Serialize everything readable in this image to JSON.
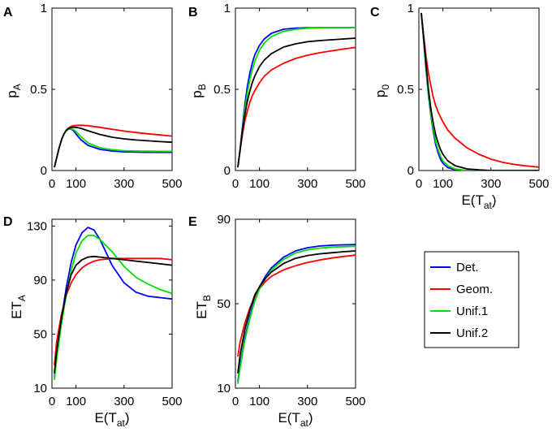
{
  "legend": [
    {
      "label": "Det.",
      "color": "#0000ff"
    },
    {
      "label": "Geom.",
      "color": "#ff0000"
    },
    {
      "label": "Unif.1",
      "color": "#00e000"
    },
    {
      "label": "Unif.2",
      "color": "#000000"
    }
  ],
  "chart_data": [
    {
      "panel": "A",
      "type": "line",
      "ylabel": "p",
      "ylabel_sub": "A",
      "xlabel": "",
      "xlabel_sub": "",
      "xlim": [
        0,
        500
      ],
      "ylim": [
        0,
        1
      ],
      "xticks": [
        0,
        100,
        300,
        500
      ],
      "yticks": [
        0,
        0.5,
        1
      ],
      "xticklabels": [
        "0",
        "100",
        "300",
        "500"
      ],
      "yticklabels": [
        "0",
        "0.5",
        "1"
      ],
      "x": [
        10,
        20,
        30,
        40,
        50,
        60,
        70,
        80,
        90,
        100,
        120,
        150,
        200,
        250,
        300,
        350,
        400,
        450,
        500
      ],
      "series": [
        {
          "name": "Det.",
          "color": "#0000ff",
          "values": [
            0.02,
            0.08,
            0.14,
            0.19,
            0.225,
            0.245,
            0.255,
            0.255,
            0.245,
            0.225,
            0.19,
            0.155,
            0.13,
            0.12,
            0.115,
            0.113,
            0.112,
            0.112,
            0.112
          ]
        },
        {
          "name": "Geom.",
          "color": "#ff0000",
          "values": [
            0.02,
            0.08,
            0.14,
            0.19,
            0.225,
            0.25,
            0.263,
            0.272,
            0.276,
            0.278,
            0.279,
            0.276,
            0.266,
            0.254,
            0.243,
            0.234,
            0.226,
            0.219,
            0.212
          ]
        },
        {
          "name": "Unif.1",
          "color": "#00e000",
          "values": [
            0.02,
            0.08,
            0.14,
            0.19,
            0.225,
            0.245,
            0.255,
            0.257,
            0.252,
            0.24,
            0.21,
            0.17,
            0.14,
            0.128,
            0.122,
            0.12,
            0.119,
            0.118,
            0.118
          ]
        },
        {
          "name": "Unif.2",
          "color": "#000000",
          "values": [
            0.02,
            0.08,
            0.14,
            0.19,
            0.225,
            0.248,
            0.26,
            0.265,
            0.267,
            0.266,
            0.26,
            0.245,
            0.222,
            0.205,
            0.195,
            0.188,
            0.183,
            0.178,
            0.174
          ]
        }
      ]
    },
    {
      "panel": "B",
      "type": "line",
      "ylabel": "p",
      "ylabel_sub": "B",
      "xlabel": "",
      "xlabel_sub": "",
      "xlim": [
        0,
        500
      ],
      "ylim": [
        0,
        1
      ],
      "xticks": [
        0,
        100,
        300,
        500
      ],
      "yticks": [
        0,
        0.5,
        1
      ],
      "xticklabels": [
        "0",
        "100",
        "300",
        "500"
      ],
      "yticklabels": [
        "0",
        "0.5",
        "1"
      ],
      "x": [
        10,
        20,
        30,
        40,
        50,
        60,
        70,
        80,
        100,
        120,
        150,
        200,
        250,
        300,
        350,
        400,
        450,
        500
      ],
      "series": [
        {
          "name": "Det.",
          "color": "#0000ff",
          "values": [
            0.02,
            0.14,
            0.28,
            0.41,
            0.52,
            0.6,
            0.66,
            0.71,
            0.77,
            0.81,
            0.845,
            0.87,
            0.877,
            0.879,
            0.88,
            0.88,
            0.88,
            0.88
          ]
        },
        {
          "name": "Geom.",
          "color": "#ff0000",
          "values": [
            0.02,
            0.13,
            0.23,
            0.31,
            0.37,
            0.42,
            0.46,
            0.49,
            0.54,
            0.58,
            0.62,
            0.66,
            0.69,
            0.71,
            0.725,
            0.737,
            0.748,
            0.758
          ]
        },
        {
          "name": "Unif.1",
          "color": "#00e000",
          "values": [
            0.02,
            0.13,
            0.26,
            0.38,
            0.48,
            0.56,
            0.62,
            0.67,
            0.74,
            0.785,
            0.825,
            0.857,
            0.87,
            0.876,
            0.879,
            0.88,
            0.88,
            0.88
          ]
        },
        {
          "name": "Unif.2",
          "color": "#000000",
          "values": [
            0.02,
            0.13,
            0.25,
            0.35,
            0.43,
            0.49,
            0.54,
            0.58,
            0.64,
            0.68,
            0.72,
            0.76,
            0.78,
            0.793,
            0.8,
            0.805,
            0.81,
            0.815
          ]
        }
      ]
    },
    {
      "panel": "C",
      "type": "line",
      "ylabel": "p",
      "ylabel_sub": "0",
      "xlabel": "E(T",
      "xlabel_sub": "at",
      "xlim": [
        0,
        500
      ],
      "ylim": [
        0,
        1
      ],
      "xticks": [
        0,
        100,
        300,
        500
      ],
      "yticks": [
        0,
        0.5,
        1
      ],
      "xticklabels": [
        "0",
        "100",
        "300",
        "500"
      ],
      "yticklabels": [
        "0",
        "0.5",
        "1"
      ],
      "x": [
        10,
        20,
        30,
        40,
        50,
        60,
        70,
        80,
        90,
        100,
        120,
        150,
        200,
        250,
        300,
        350,
        400,
        450,
        500
      ],
      "series": [
        {
          "name": "Det.",
          "color": "#0000ff",
          "values": [
            0.97,
            0.8,
            0.62,
            0.46,
            0.34,
            0.24,
            0.16,
            0.11,
            0.07,
            0.045,
            0.018,
            0.005,
            0,
            0,
            0,
            0,
            0,
            0,
            0
          ]
        },
        {
          "name": "Geom.",
          "color": "#ff0000",
          "values": [
            0.96,
            0.83,
            0.7,
            0.6,
            0.52,
            0.45,
            0.4,
            0.36,
            0.33,
            0.3,
            0.25,
            0.2,
            0.14,
            0.1,
            0.07,
            0.05,
            0.037,
            0.028,
            0.021
          ]
        },
        {
          "name": "Unif.1",
          "color": "#00e000",
          "values": [
            0.97,
            0.81,
            0.63,
            0.47,
            0.35,
            0.26,
            0.18,
            0.13,
            0.09,
            0.06,
            0.03,
            0.01,
            0,
            0,
            0,
            0,
            0,
            0,
            0
          ]
        },
        {
          "name": "Unif.2",
          "color": "#000000",
          "values": [
            0.97,
            0.82,
            0.65,
            0.5,
            0.38,
            0.29,
            0.22,
            0.17,
            0.13,
            0.1,
            0.06,
            0.03,
            0.01,
            0.004,
            0,
            0,
            0,
            0,
            0
          ]
        }
      ]
    },
    {
      "panel": "D",
      "type": "line",
      "ylabel": "ET",
      "ylabel_sub": "A",
      "xlabel": "E(T",
      "xlabel_sub": "at",
      "xlim": [
        0,
        500
      ],
      "ylim": [
        10,
        135
      ],
      "xticks": [
        0,
        100,
        300,
        500
      ],
      "yticks": [
        10,
        50,
        90,
        130
      ],
      "xticklabels": [
        "0",
        "100",
        "300",
        "500"
      ],
      "yticklabels": [
        "10",
        "50",
        "90",
        "130"
      ],
      "x": [
        10,
        20,
        40,
        60,
        80,
        100,
        125,
        150,
        175,
        200,
        250,
        300,
        350,
        400,
        450,
        500
      ],
      "series": [
        {
          "name": "Det.",
          "color": "#0000ff",
          "values": [
            18,
            35,
            62,
            85,
            103,
            116,
            125,
            129,
            127,
            120,
            101,
            88,
            81,
            78,
            77,
            76
          ]
        },
        {
          "name": "Geom.",
          "color": "#ff0000",
          "values": [
            27,
            45,
            65,
            79,
            88,
            94,
            99,
            102,
            104,
            105,
            106,
            106,
            106,
            106,
            106,
            105
          ]
        },
        {
          "name": "Unif.1",
          "color": "#00e000",
          "values": [
            16,
            32,
            58,
            80,
            97,
            110,
            119,
            123,
            123,
            120,
            111,
            100,
            92,
            87,
            83,
            80
          ]
        },
        {
          "name": "Unif.2",
          "color": "#000000",
          "values": [
            21,
            38,
            62,
            81,
            94,
            101,
            105,
            107,
            107.5,
            107,
            106,
            105,
            104,
            103,
            102,
            101
          ]
        }
      ]
    },
    {
      "panel": "E",
      "type": "line",
      "ylabel": "ET",
      "ylabel_sub": "B",
      "xlabel": "E(T",
      "xlabel_sub": "at",
      "xlim": [
        0,
        500
      ],
      "ylim": [
        10,
        90
      ],
      "xticks": [
        0,
        100,
        300,
        500
      ],
      "yticks": [
        10,
        50,
        90
      ],
      "xticklabels": [
        "0",
        "100",
        "300",
        "500"
      ],
      "yticklabels": [
        "10",
        "50",
        "90"
      ],
      "x": [
        10,
        20,
        40,
        60,
        80,
        100,
        125,
        150,
        200,
        250,
        300,
        350,
        400,
        450,
        500
      ],
      "series": [
        {
          "name": "Det.",
          "color": "#0000ff",
          "values": [
            13,
            21,
            34,
            44,
            52,
            58,
            63,
            67,
            72,
            75,
            76.5,
            77.3,
            77.7,
            77.9,
            78
          ]
        },
        {
          "name": "Geom.",
          "color": "#ff0000",
          "values": [
            25,
            32,
            41,
            48,
            53,
            57,
            60.5,
            63,
            66,
            68,
            69.5,
            70.7,
            71.6,
            72.4,
            73
          ]
        },
        {
          "name": "Unif.1",
          "color": "#00e000",
          "values": [
            12,
            20,
            33,
            43,
            51,
            57,
            62,
            66,
            71,
            74,
            75.5,
            76.3,
            76.8,
            77,
            77.2
          ]
        },
        {
          "name": "Unif.2",
          "color": "#000000",
          "values": [
            17,
            26,
            38,
            47,
            54,
            58,
            62,
            65,
            69,
            71.5,
            72.8,
            73.6,
            74.1,
            74.6,
            75
          ]
        }
      ]
    }
  ]
}
